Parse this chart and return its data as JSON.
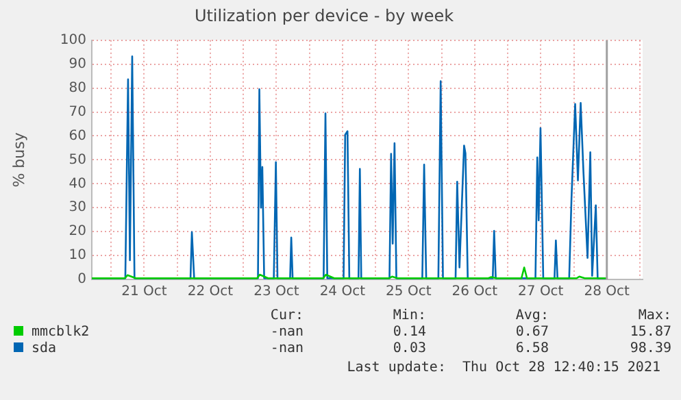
{
  "chart_data": {
    "type": "line",
    "title": "Utilization per device - by week",
    "ylabel": "% busy",
    "xlim": [
      "2021-10-20T17:00",
      "2021-10-29T01:00"
    ],
    "xticks": [
      {
        "value": "2021-10-21T00:00",
        "label": null
      },
      {
        "value": "2021-10-21T12:00",
        "label": "21 Oct"
      },
      {
        "value": "2021-10-22T00:00",
        "label": null
      },
      {
        "value": "2021-10-22T12:00",
        "label": "22 Oct"
      },
      {
        "value": "2021-10-23T00:00",
        "label": null
      },
      {
        "value": "2021-10-23T12:00",
        "label": "23 Oct"
      },
      {
        "value": "2021-10-24T00:00",
        "label": null
      },
      {
        "value": "2021-10-24T12:00",
        "label": "24 Oct"
      },
      {
        "value": "2021-10-25T00:00",
        "label": null
      },
      {
        "value": "2021-10-25T12:00",
        "label": "25 Oct"
      },
      {
        "value": "2021-10-26T00:00",
        "label": null
      },
      {
        "value": "2021-10-26T12:00",
        "label": "26 Oct"
      },
      {
        "value": "2021-10-27T00:00",
        "label": null
      },
      {
        "value": "2021-10-27T12:00",
        "label": "27 Oct"
      },
      {
        "value": "2021-10-28T00:00",
        "label": null
      },
      {
        "value": "2021-10-28T12:00",
        "label": "28 Oct"
      },
      {
        "value": "2021-10-29T00:00",
        "label": null
      }
    ],
    "ylim": [
      0,
      100
    ],
    "yticks": [
      0,
      10,
      20,
      30,
      40,
      50,
      60,
      70,
      80,
      90,
      100
    ],
    "grid": true,
    "legend": "bottom",
    "marker": "none",
    "line_style": "solid",
    "ref_lines": [
      {
        "axis": "x",
        "value": "2021-10-28T12:00",
        "color": "#a0a0a0"
      }
    ],
    "series": [
      {
        "name": "mmcblk2",
        "color": "#00cc00",
        "x": [
          "2021-10-20T17:00",
          "2021-10-21T05:00",
          "2021-10-21T06:00",
          "2021-10-21T09:00",
          "2021-10-23T05:00",
          "2021-10-23T06:00",
          "2021-10-23T09:00",
          "2021-10-24T05:00",
          "2021-10-24T06:00",
          "2021-10-24T09:00",
          "2021-10-25T05:00",
          "2021-10-25T06:00",
          "2021-10-25T08:00",
          "2021-10-26T17:00",
          "2021-10-26T18:00",
          "2021-10-26T20:00",
          "2021-10-27T05:00",
          "2021-10-27T06:00",
          "2021-10-27T07:00",
          "2021-10-28T01:00",
          "2021-10-28T02:00",
          "2021-10-28T04:00",
          "2021-10-28T11:50"
        ],
        "values": [
          0.5,
          0.5,
          1.8,
          0.5,
          0.5,
          2,
          0.5,
          0.5,
          2,
          0.5,
          0.5,
          1.2,
          0.5,
          0.5,
          1,
          0.5,
          0.5,
          5,
          0.5,
          0.5,
          1.2,
          0.5,
          0.5
        ]
      },
      {
        "name": "sda",
        "color": "#0066b3",
        "x": [
          "2021-10-20T17:00",
          "2021-10-21T05:10",
          "2021-10-21T06:10",
          "2021-10-21T06:50",
          "2021-10-21T07:40",
          "2021-10-21T08:30",
          "2021-10-22T04:50",
          "2021-10-22T05:20",
          "2021-10-22T06:10",
          "2021-10-23T05:20",
          "2021-10-23T05:50",
          "2021-10-23T06:25",
          "2021-10-23T06:55",
          "2021-10-23T07:35",
          "2021-10-23T11:05",
          "2021-10-23T11:50",
          "2021-10-23T12:25",
          "2021-10-23T17:00",
          "2021-10-23T17:25",
          "2021-10-23T17:55",
          "2021-10-24T05:10",
          "2021-10-24T05:50",
          "2021-10-24T06:30",
          "2021-10-24T12:25",
          "2021-10-24T13:00",
          "2021-10-24T13:50",
          "2021-10-24T14:30",
          "2021-10-24T17:50",
          "2021-10-24T18:20",
          "2021-10-24T18:50",
          "2021-10-25T05:05",
          "2021-10-25T05:40",
          "2021-10-25T06:15",
          "2021-10-25T06:55",
          "2021-10-25T07:35",
          "2021-10-25T17:00",
          "2021-10-25T17:40",
          "2021-10-25T18:25",
          "2021-10-25T22:50",
          "2021-10-25T23:40",
          "2021-10-26T00:30",
          "2021-10-26T05:05",
          "2021-10-26T05:40",
          "2021-10-26T06:30",
          "2021-10-26T08:10",
          "2021-10-26T08:40",
          "2021-10-26T09:30",
          "2021-10-26T18:35",
          "2021-10-26T19:05",
          "2021-10-26T19:40",
          "2021-10-27T10:05",
          "2021-10-27T10:45",
          "2021-10-27T11:15",
          "2021-10-27T11:55",
          "2021-10-27T12:55",
          "2021-10-27T17:00",
          "2021-10-27T17:30",
          "2021-10-27T18:05",
          "2021-10-27T22:20",
          "2021-10-27T23:10",
          "2021-10-28T00:30",
          "2021-10-28T01:30",
          "2021-10-28T02:30",
          "2021-10-28T03:30",
          "2021-10-28T05:00",
          "2021-10-28T06:00",
          "2021-10-28T06:40",
          "2021-10-28T08:00",
          "2021-10-28T08:40",
          "2021-10-28T11:50"
        ],
        "values": [
          0.5,
          0.5,
          83.7,
          8,
          93.3,
          0.5,
          0.5,
          19.8,
          0.5,
          0.5,
          79.5,
          30,
          47,
          0.5,
          0.5,
          49,
          0.5,
          0.5,
          17.5,
          0.5,
          0.5,
          69.4,
          0.5,
          0.5,
          60.5,
          62,
          0.5,
          0.5,
          46.2,
          0.5,
          0.5,
          52.5,
          15,
          57,
          0.5,
          0.5,
          48,
          0.5,
          0.5,
          82.9,
          0.5,
          0.5,
          40.9,
          5,
          56,
          52.8,
          0.5,
          0.5,
          20.3,
          0.5,
          0.5,
          51,
          24.7,
          63.3,
          0.5,
          0.5,
          16.3,
          0.5,
          0.5,
          33.8,
          73.4,
          41.4,
          73.8,
          45.2,
          9,
          53.2,
          1.5,
          31,
          0.5,
          0.5
        ]
      }
    ],
    "annotations": [
      "Cur:",
      "Min:",
      "Avg:",
      "Max:",
      "-nan",
      "0.14",
      "0.67",
      "15.87",
      "-nan",
      "0.03",
      "6.58",
      "98.39",
      "Last update:  Thu Oct 28 12:40:15 2021"
    ]
  }
}
